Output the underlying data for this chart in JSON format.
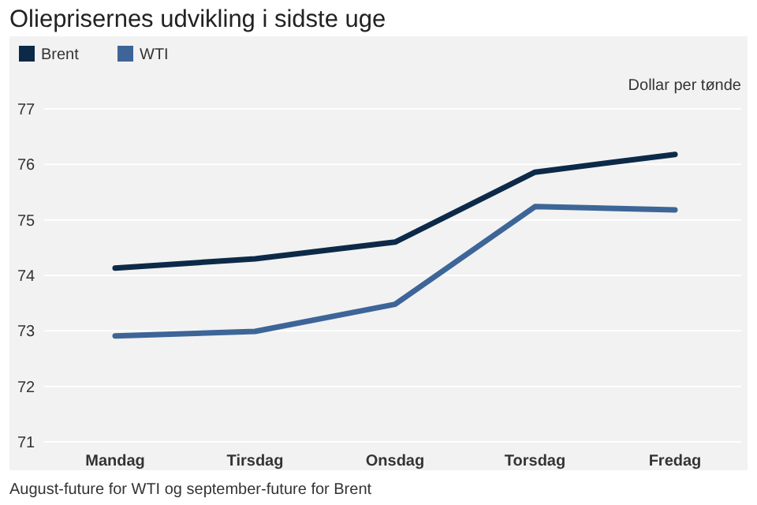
{
  "chart_data": {
    "type": "line",
    "title": "Olieprisernes udvikling i sidste uge",
    "ylabel": "Dollar per tønde",
    "categories": [
      "Mandag",
      "Tirsdag",
      "Onsdag",
      "Torsdag",
      "Fredag"
    ],
    "series": [
      {
        "name": "Brent",
        "color": "#0c2a48",
        "values": [
          74.13,
          74.3,
          74.6,
          75.86,
          76.18
        ]
      },
      {
        "name": "WTI",
        "color": "#3d6598",
        "values": [
          72.91,
          72.99,
          73.48,
          75.24,
          75.18
        ]
      }
    ],
    "ylim": [
      71,
      77
    ],
    "yticks": [
      71,
      72,
      73,
      74,
      75,
      76,
      77
    ],
    "grid": "y",
    "legend": "top left",
    "marker": "none",
    "line_style": "solid",
    "annotations": [
      "August-future for WTI og september-future for Brent"
    ]
  }
}
